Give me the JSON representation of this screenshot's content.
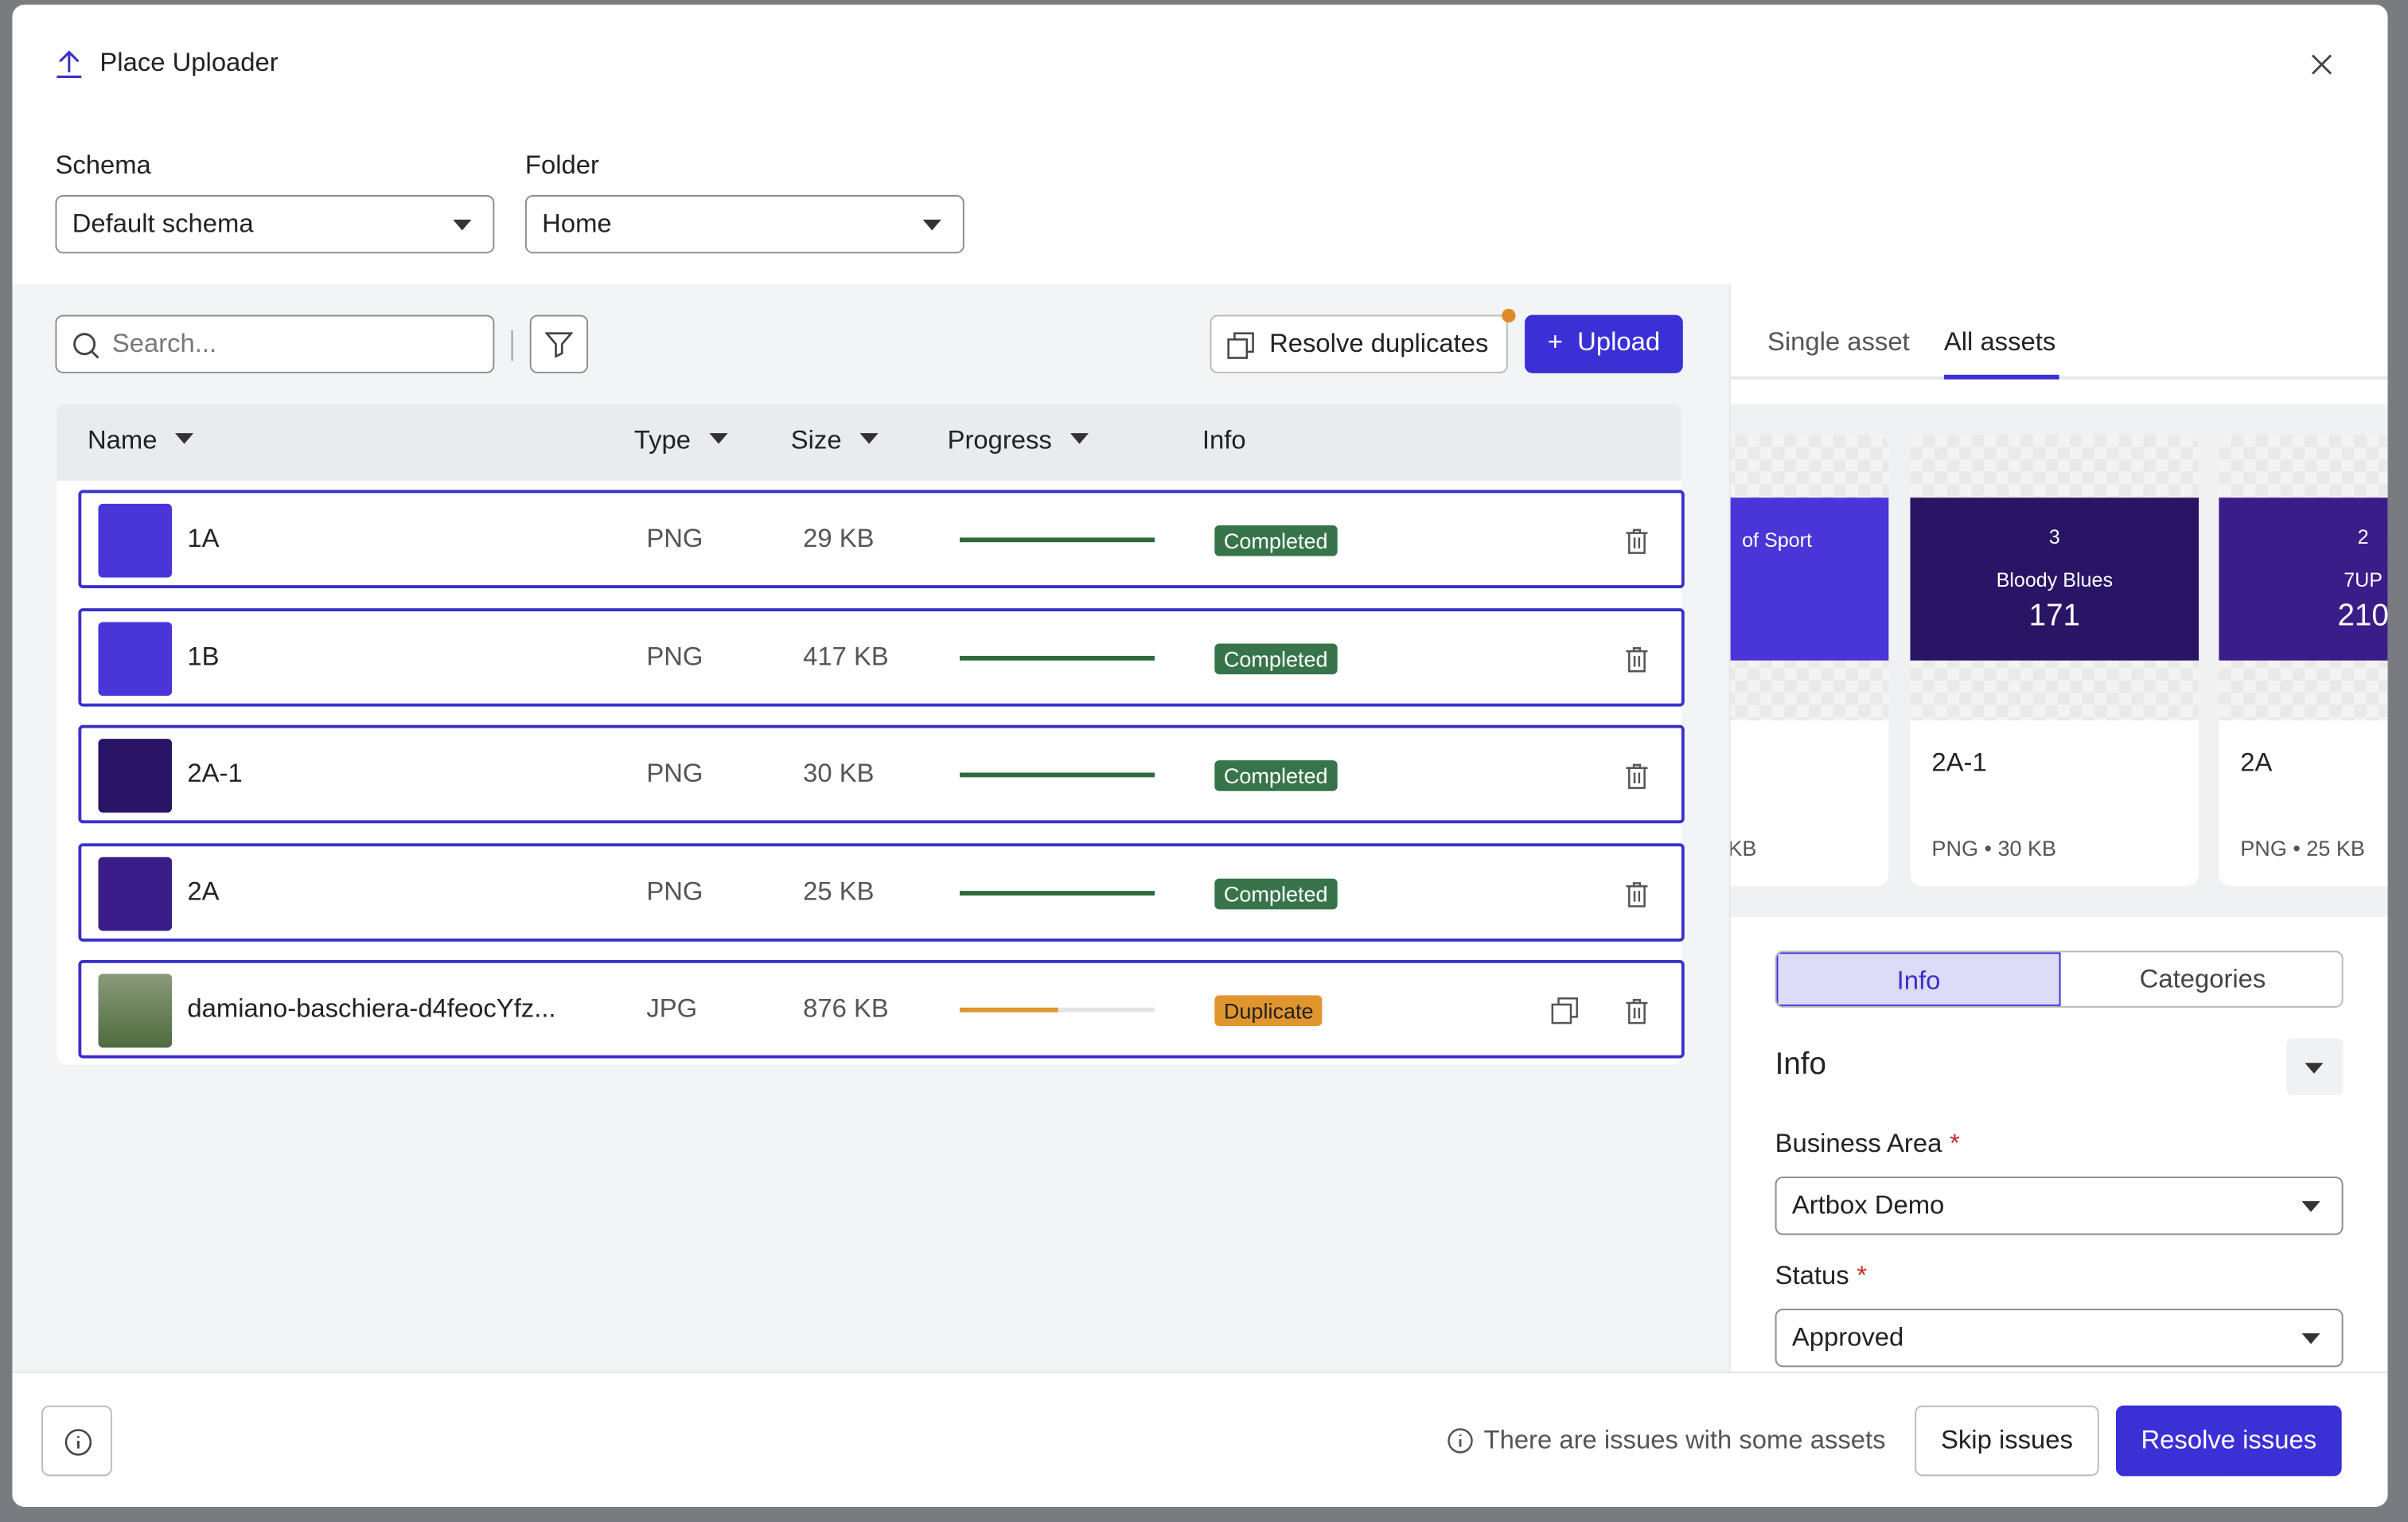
{
  "header": {
    "title": "Place Uploader"
  },
  "fields": {
    "schema": {
      "label": "Schema",
      "value": "Default schema"
    },
    "folder": {
      "label": "Folder",
      "value": "Home"
    }
  },
  "toolbar": {
    "search_placeholder": "Search...",
    "resolve_duplicates": "Resolve duplicates",
    "upload": "Upload"
  },
  "table": {
    "columns": [
      "Name",
      "Type",
      "Size",
      "Progress",
      "Info"
    ],
    "rows": [
      {
        "name": "1A",
        "type": "PNG",
        "size": "29 KB",
        "progress": 100,
        "status": "Completed"
      },
      {
        "name": "1B",
        "type": "PNG",
        "size": "417 KB",
        "progress": 100,
        "status": "Completed"
      },
      {
        "name": "2A-1",
        "type": "PNG",
        "size": "30 KB",
        "progress": 100,
        "status": "Completed"
      },
      {
        "name": "2A",
        "type": "PNG",
        "size": "25 KB",
        "progress": 100,
        "status": "Completed"
      },
      {
        "name": "damiano-baschiera-d4feocYfz...",
        "type": "JPG",
        "size": "876 KB",
        "progress": 50,
        "status": "Duplicate"
      }
    ]
  },
  "panel": {
    "tabs": [
      "Single asset",
      "All assets"
    ],
    "cards": [
      {
        "art_title": "of Sport",
        "meta": "KB"
      },
      {
        "badge": "3",
        "art_title": "Bloody Blues",
        "art_number": "171",
        "name": "2A-1",
        "meta": "PNG • 30 KB"
      },
      {
        "badge": "2",
        "art_title": "7UP",
        "art_number": "210",
        "name": "2A",
        "meta": "PNG • 25 KB"
      }
    ],
    "segments": [
      "Info",
      "Categories"
    ],
    "section_title": "Info",
    "form": [
      {
        "label": "Business Area",
        "required_mark": "*",
        "value": "Artbox Demo"
      },
      {
        "label": "Status",
        "required_mark": "*",
        "value": "Approved"
      }
    ]
  },
  "footer": {
    "notice": "There are issues with some assets",
    "skip": "Skip issues",
    "resolve": "Resolve issues"
  }
}
